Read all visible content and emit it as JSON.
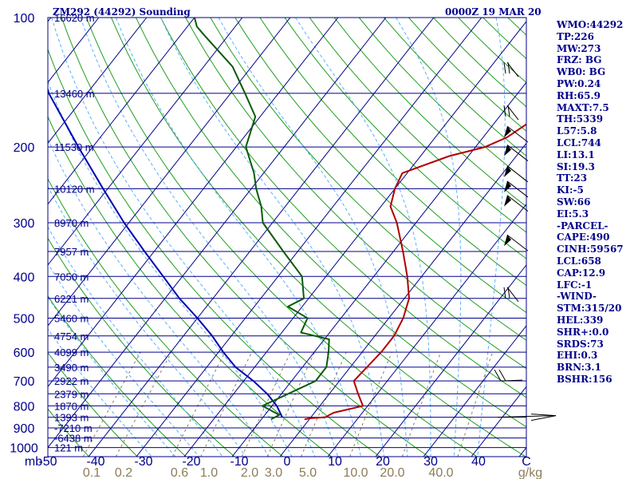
{
  "header": {
    "title": "ZM292 (44292) Sounding",
    "date": "0000Z 19 MAR 20"
  },
  "indices": [
    "WMO:44292",
    "TP:226",
    "MW:273",
    "FRZ: BG",
    "WB0: BG",
    "PW:0.24",
    "RH:65.9",
    "MAXT:7.5",
    "TH:5339",
    "L57:5.8",
    "LCL:744",
    "LI:13.1",
    "SI:19.3",
    "TT:23",
    "KI:-5",
    "SW:66",
    "EI:5.3",
    "-PARCEL-",
    "CAPE:490",
    "CINH:59567",
    "LCL:658",
    "CAP:12.9",
    "LFC:-1",
    "-WIND-",
    "STM:315/20",
    "HEL:339",
    "SHR+:0.0",
    "SRDS:73",
    "EHI:0.3",
    "BRN:3.1",
    "BSHR:156"
  ],
  "colors": {
    "axis": "#00008b",
    "isobar": "#00008b",
    "isotherm": "#00008b",
    "dry_adiabat": "#1f9e1f",
    "mixing_ratio": "#8b7d5a",
    "moist_adiabat": "#5ab0ff",
    "temperature": "#b00000",
    "dewpoint": "#0a5a0a",
    "parcel": "#0000b0",
    "wind": "#000000"
  },
  "chart_data": {
    "type": "skew-t log-p sounding",
    "xlabel": "mb",
    "x_ticks": [
      "-50",
      "-40",
      "-30",
      "-20",
      "-10",
      "0",
      "10",
      "20",
      "30",
      "40",
      "C"
    ],
    "y_ticks": [
      "100",
      "200",
      "300",
      "400",
      "500",
      "600",
      "700",
      "800",
      "900",
      "1000"
    ],
    "mixing_ratio_labels": [
      "0.1",
      "0.2",
      "0.6",
      "1.0",
      "2.0",
      "3.0",
      "5.0",
      "10.0",
      "20.0",
      "40.0",
      "g/kg"
    ],
    "height_labels": [
      {
        "p": 100,
        "label": "16620 m"
      },
      {
        "p": 150,
        "label": "13460 m"
      },
      {
        "p": 200,
        "label": "11530 m"
      },
      {
        "p": 250,
        "label": "10120 m"
      },
      {
        "p": 300,
        "label": "8970 m"
      },
      {
        "p": 350,
        "label": "7957 m"
      },
      {
        "p": 400,
        "label": "7050 m"
      },
      {
        "p": 450,
        "label": "6221 m"
      },
      {
        "p": 500,
        "label": "5460 m"
      },
      {
        "p": 550,
        "label": "4754 m"
      },
      {
        "p": 600,
        "label": "4099 m"
      },
      {
        "p": 650,
        "label": "3490 m"
      },
      {
        "p": 700,
        "label": "2922 m"
      },
      {
        "p": 750,
        "label": "2379 m"
      },
      {
        "p": 800,
        "label": "1870 m"
      },
      {
        "p": 850,
        "label": "1393 m"
      },
      {
        "p": 900,
        "label": "-7210 m"
      },
      {
        "p": 950,
        "label": "-6438 m"
      },
      {
        "p": 1000,
        "label": "121 m"
      }
    ],
    "temperature": [
      {
        "p": 860,
        "t": -1
      },
      {
        "p": 855,
        "t": 0
      },
      {
        "p": 850,
        "t": 3
      },
      {
        "p": 830,
        "t": 4
      },
      {
        "p": 800,
        "t": 9
      },
      {
        "p": 750,
        "t": 6
      },
      {
        "p": 700,
        "t": 3
      },
      {
        "p": 600,
        "t": 4
      },
      {
        "p": 550,
        "t": 4
      },
      {
        "p": 500,
        "t": 3
      },
      {
        "p": 450,
        "t": 1
      },
      {
        "p": 400,
        "t": -3
      },
      {
        "p": 350,
        "t": -8
      },
      {
        "p": 300,
        "t": -14
      },
      {
        "p": 275,
        "t": -18
      },
      {
        "p": 250,
        "t": -20
      },
      {
        "p": 230,
        "t": -21
      },
      {
        "p": 210,
        "t": -14
      },
      {
        "p": 200,
        "t": -8
      },
      {
        "p": 190,
        "t": -5
      },
      {
        "p": 170,
        "t": -2
      },
      {
        "p": 150,
        "t": -1
      },
      {
        "p": 130,
        "t": -2
      },
      {
        "p": 115,
        "t": -6
      },
      {
        "p": 105,
        "t": -14
      },
      {
        "p": 100,
        "t": -16
      }
    ],
    "dewpoint": [
      {
        "p": 860,
        "t": -8
      },
      {
        "p": 840,
        "t": -7
      },
      {
        "p": 800,
        "t": -12
      },
      {
        "p": 700,
        "t": -5
      },
      {
        "p": 650,
        "t": -5
      },
      {
        "p": 600,
        "t": -7
      },
      {
        "p": 560,
        "t": -9
      },
      {
        "p": 540,
        "t": -16
      },
      {
        "p": 500,
        "t": -17
      },
      {
        "p": 470,
        "t": -23
      },
      {
        "p": 450,
        "t": -21
      },
      {
        "p": 400,
        "t": -25
      },
      {
        "p": 350,
        "t": -33
      },
      {
        "p": 300,
        "t": -42
      },
      {
        "p": 275,
        "t": -45
      },
      {
        "p": 250,
        "t": -49
      },
      {
        "p": 230,
        "t": -52
      },
      {
        "p": 200,
        "t": -58
      },
      {
        "p": 170,
        "t": -61
      },
      {
        "p": 150,
        "t": -67
      },
      {
        "p": 130,
        "t": -74
      },
      {
        "p": 110,
        "t": -85
      },
      {
        "p": 105,
        "t": -88
      },
      {
        "p": 100,
        "t": -90
      }
    ],
    "parcel": [
      {
        "p": 850,
        "t": -6
      },
      {
        "p": 800,
        "t": -9
      },
      {
        "p": 750,
        "t": -13
      },
      {
        "p": 700,
        "t": -18
      },
      {
        "p": 650,
        "t": -24
      },
      {
        "p": 600,
        "t": -29
      },
      {
        "p": 550,
        "t": -34
      },
      {
        "p": 500,
        "t": -40
      },
      {
        "p": 450,
        "t": -47
      },
      {
        "p": 400,
        "t": -54
      },
      {
        "p": 350,
        "t": -62
      },
      {
        "p": 300,
        "t": -71
      },
      {
        "p": 250,
        "t": -81
      },
      {
        "p": 200,
        "t": -93
      },
      {
        "p": 150,
        "t": -108
      },
      {
        "p": 110,
        "t": -121
      }
    ],
    "winds": [
      {
        "p": 850,
        "kind": "flag-right"
      },
      {
        "p": 700,
        "kind": "barb-long"
      },
      {
        "p": 450,
        "kind": "barb"
      },
      {
        "p": 340,
        "kind": "pennant"
      },
      {
        "p": 275,
        "kind": "pennant"
      },
      {
        "p": 255,
        "kind": "pennant"
      },
      {
        "p": 235,
        "kind": "pennant"
      },
      {
        "p": 210,
        "kind": "pennant"
      },
      {
        "p": 190,
        "kind": "pennant"
      },
      {
        "p": 170,
        "kind": "barb"
      },
      {
        "p": 135,
        "kind": "barb"
      }
    ]
  }
}
